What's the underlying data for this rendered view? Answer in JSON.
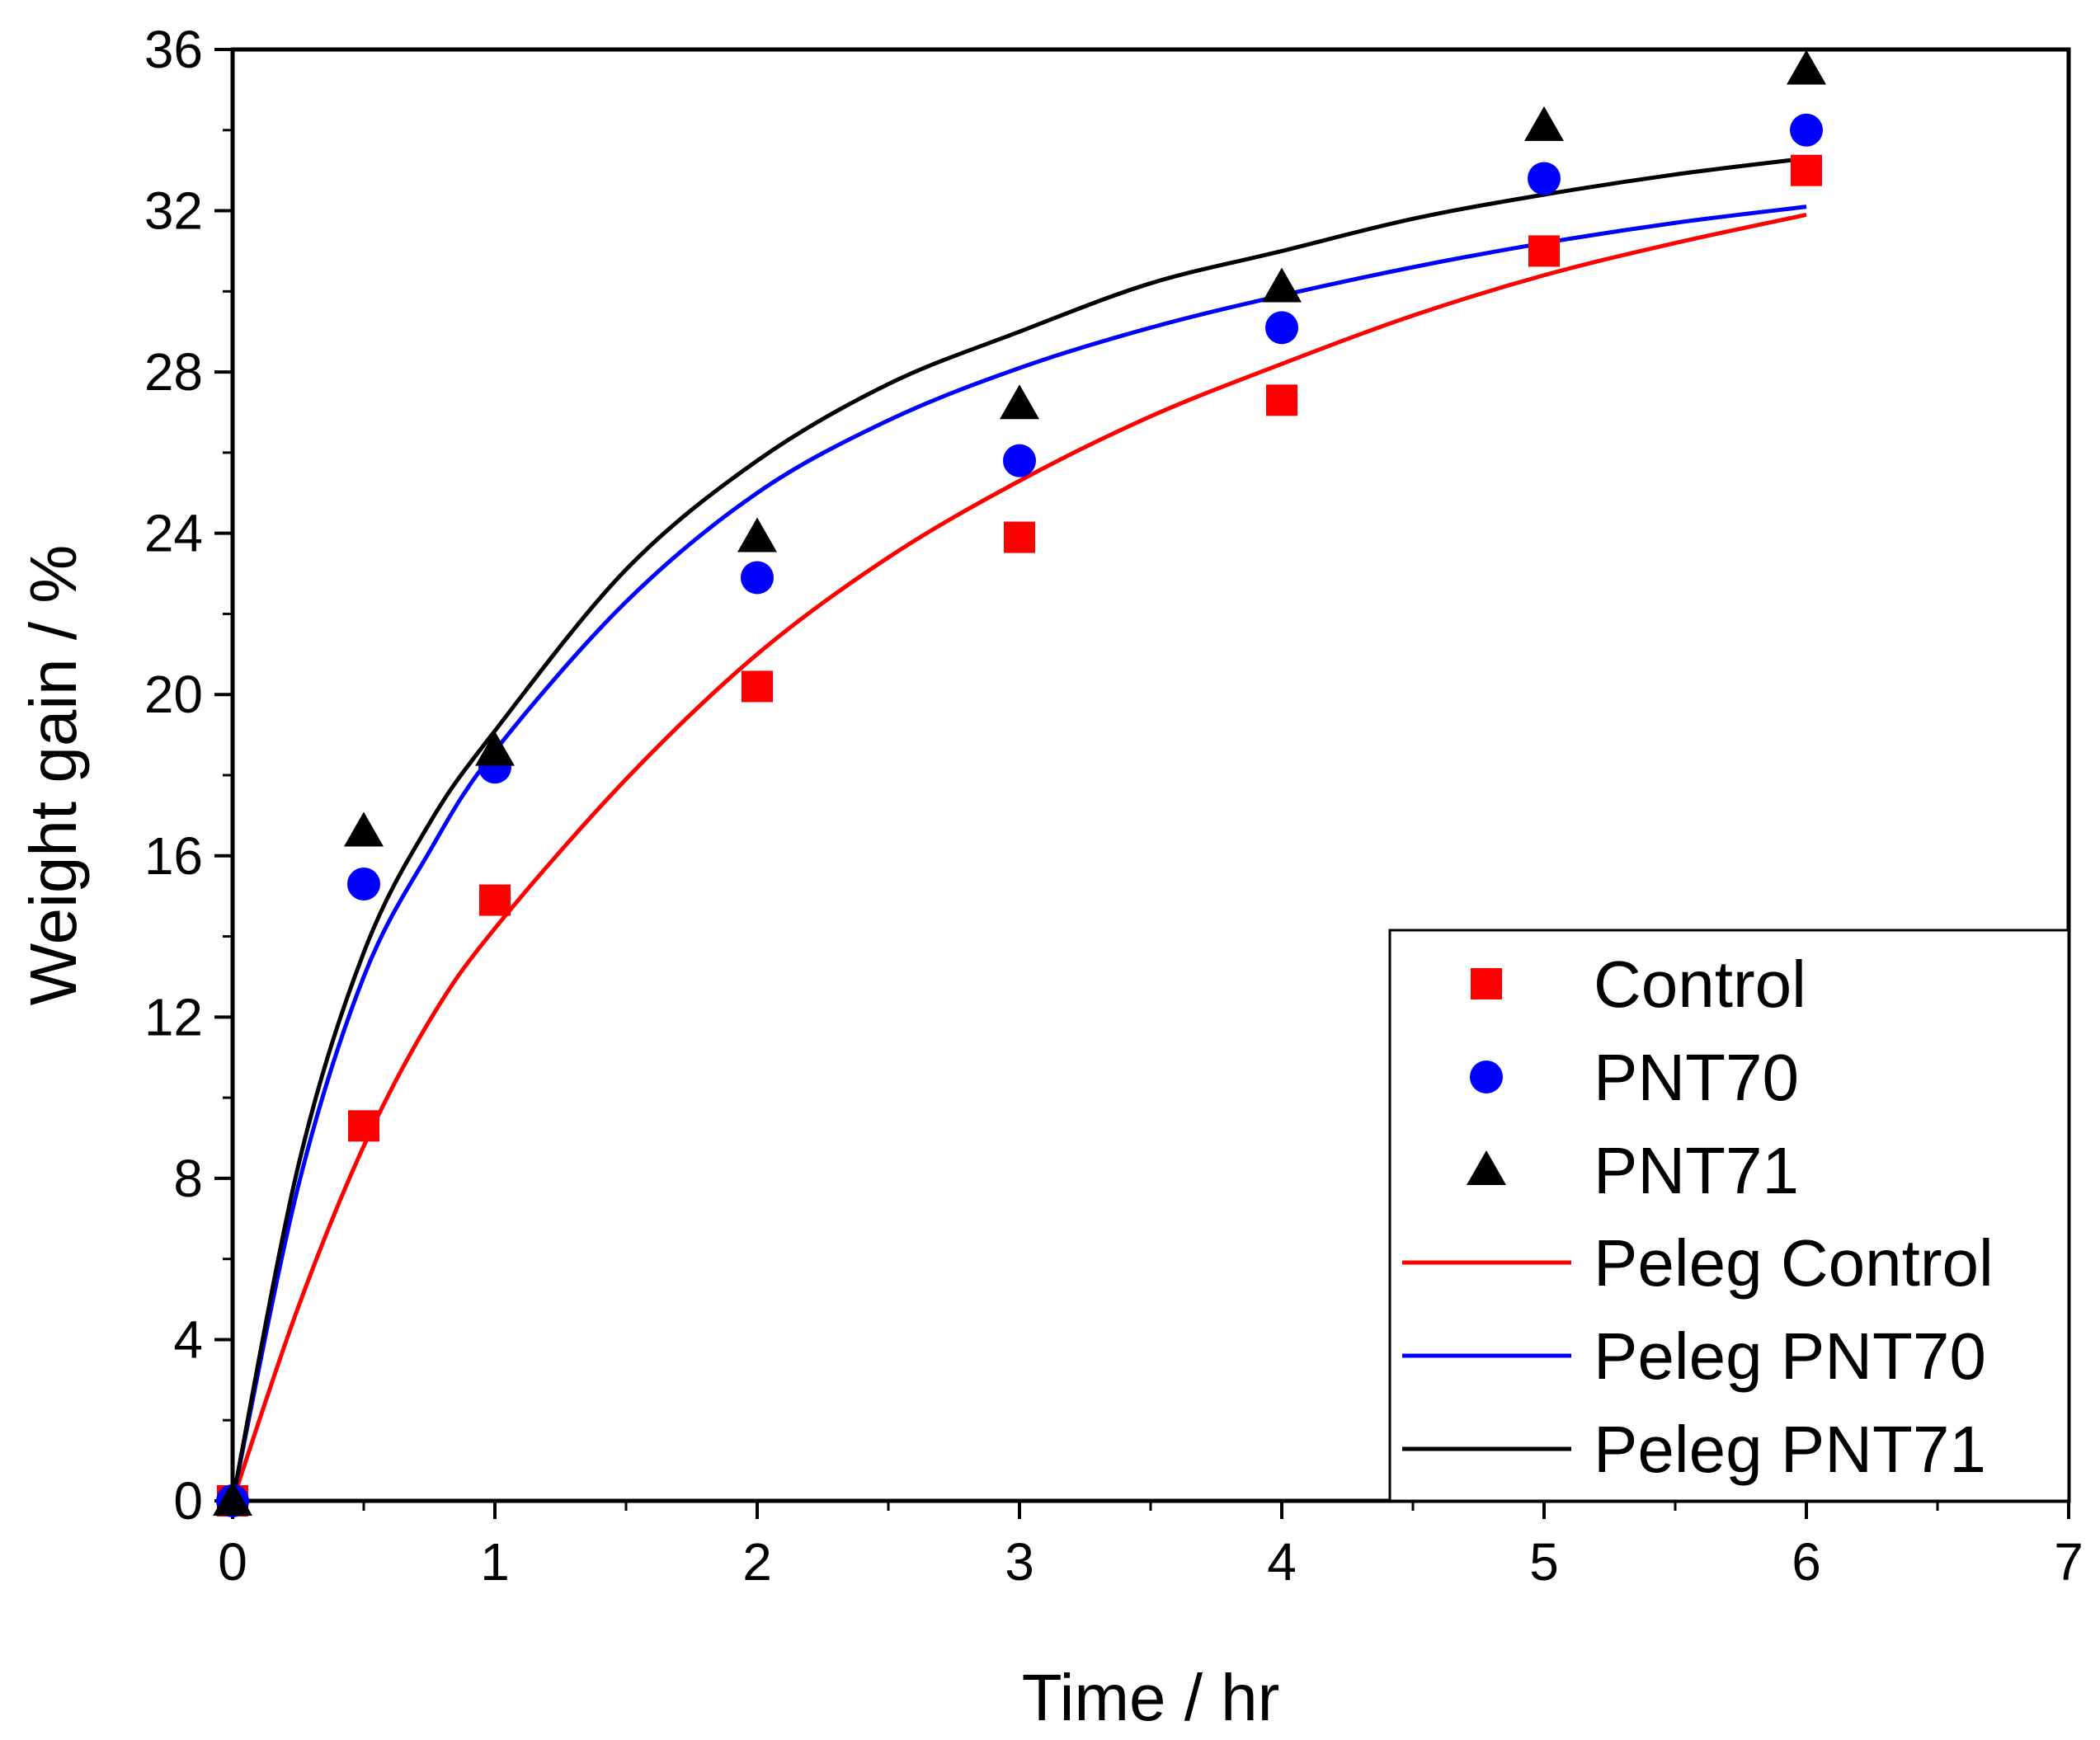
{
  "chart_data": {
    "type": "scatter",
    "xlabel": "Time / hr",
    "ylabel": "Weight gain / %",
    "xlim": [
      0,
      7
    ],
    "ylim": [
      0,
      36
    ],
    "xticks": [
      "0",
      "1",
      "2",
      "3",
      "4",
      "5",
      "6",
      "7"
    ],
    "yticks": [
      "0",
      "4",
      "8",
      "12",
      "16",
      "20",
      "24",
      "28",
      "32",
      "36"
    ],
    "grid": false,
    "legend_position": "bottom-right",
    "series": [
      {
        "name": "Control",
        "kind": "points",
        "marker": "square",
        "color": "#ff0000",
        "x": [
          0,
          0.5,
          1,
          2,
          3,
          4,
          5,
          6
        ],
        "y": [
          0,
          9.3,
          14.9,
          20.2,
          23.9,
          27.3,
          31.0,
          33.0
        ]
      },
      {
        "name": "PNT70",
        "kind": "points",
        "marker": "circle",
        "color": "#0000ff",
        "x": [
          0,
          0.5,
          1,
          2,
          3,
          4,
          5,
          6
        ],
        "y": [
          0,
          15.3,
          18.2,
          22.9,
          25.8,
          29.1,
          32.8,
          34.0
        ]
      },
      {
        "name": "PNT71",
        "kind": "points",
        "marker": "triangle",
        "color": "#000000",
        "x": [
          0,
          0.5,
          1,
          2,
          3,
          4,
          5,
          6
        ],
        "y": [
          0,
          16.6,
          18.6,
          23.9,
          27.2,
          30.1,
          34.1,
          35.5
        ]
      },
      {
        "name": "Peleg Control",
        "kind": "line",
        "color": "#ff0000",
        "x": [
          0,
          0.25,
          0.5,
          0.75,
          1,
          1.5,
          2,
          2.5,
          3,
          3.5,
          4,
          4.5,
          5,
          5.5,
          6
        ],
        "y": [
          0,
          4.8,
          8.8,
          11.9,
          14.2,
          17.9,
          21.0,
          23.4,
          25.3,
          26.9,
          28.2,
          29.4,
          30.4,
          31.2,
          31.9
        ]
      },
      {
        "name": "Peleg PNT70",
        "kind": "line",
        "color": "#0000ff",
        "x": [
          0,
          0.25,
          0.5,
          0.75,
          1,
          1.5,
          2,
          2.5,
          3,
          3.5,
          4,
          4.5,
          5,
          5.5,
          6
        ],
        "y": [
          0,
          7.8,
          13.0,
          16.1,
          18.6,
          22.3,
          25.0,
          26.8,
          28.1,
          29.1,
          29.9,
          30.6,
          31.2,
          31.7,
          32.1
        ]
      },
      {
        "name": "Peleg PNT71",
        "kind": "line",
        "color": "#000000",
        "x": [
          0,
          0.25,
          0.5,
          0.75,
          1,
          1.5,
          2,
          2.5,
          3,
          3.5,
          4,
          4.5,
          5,
          5.5,
          6
        ],
        "y": [
          0,
          8.3,
          13.6,
          16.8,
          19.1,
          23.1,
          25.8,
          27.7,
          29.0,
          30.2,
          31.0,
          31.8,
          32.4,
          32.9,
          33.3
        ]
      }
    ]
  }
}
